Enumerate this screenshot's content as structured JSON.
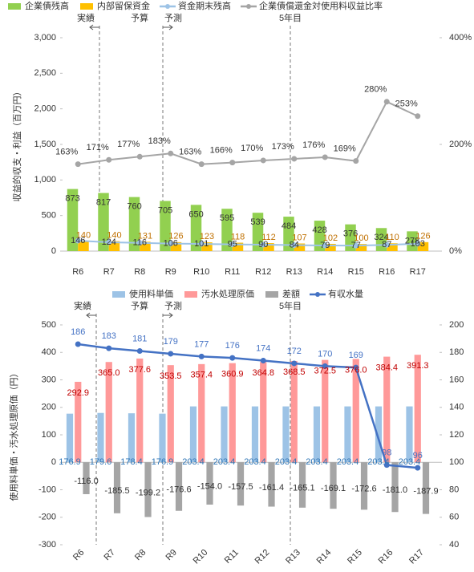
{
  "chart_data": [
    {
      "type": "bar",
      "ylabel": "収益的収支・利益（百万円）",
      "annotations": [
        "実績",
        "予算",
        "予測",
        "5年目"
      ],
      "categories": [
        "R6",
        "R7",
        "R8",
        "R9",
        "R10",
        "R11",
        "R12",
        "R13",
        "R14",
        "R15",
        "R16",
        "R17"
      ],
      "series": [
        {
          "name": "企業債残高",
          "type": "bar",
          "color": "#92d050",
          "values": [
            873,
            817,
            760,
            705,
            650,
            595,
            539,
            484,
            428,
            376,
            324,
            278
          ]
        },
        {
          "name": "内部留保資金",
          "type": "bar",
          "color": "#ffc000",
          "values": [
            140,
            140,
            131,
            126,
            123,
            118,
            112,
            107,
            102,
            100,
            110,
            126
          ]
        },
        {
          "name": "資金期末残高",
          "type": "line",
          "color": "#9dc3e6",
          "values": [
            146,
            124,
            116,
            106,
            101,
            95,
            90,
            84,
            79,
            77,
            87,
            103
          ]
        },
        {
          "name": "企業債償還金対使用料収益比率",
          "type": "line",
          "axis": "y2",
          "color": "#a5a5a5",
          "values": [
            163,
            171,
            177,
            183,
            163,
            166,
            170,
            173,
            176,
            169,
            280,
            253
          ],
          "value_labels": [
            "163%",
            "171%",
            "177%",
            "183%",
            "163%",
            "166%",
            "170%",
            "173%",
            "176%",
            "169%",
            "280%",
            "253%"
          ]
        }
      ],
      "ylim": [
        0,
        3000
      ],
      "yticks": [
        0,
        500,
        {
          "value": 1000,
          "label": "1,000"
        },
        {
          "value": 1500,
          "label": "1,500"
        },
        {
          "value": 2000,
          "label": "2,000"
        },
        {
          "value": 2500,
          "label": "2,500"
        },
        {
          "value": 3000,
          "label": "3,000"
        }
      ],
      "y2lim": [
        0,
        400
      ],
      "y2ticks": [
        {
          "value": 0,
          "label": "0%"
        },
        {
          "value": 200,
          "label": "200%"
        },
        {
          "value": 400,
          "label": "400%"
        }
      ],
      "grid": false,
      "legend": "top"
    },
    {
      "type": "bar",
      "ylabel": "使用料単価・汚水処理原価（円）",
      "annotations": [
        "実績",
        "予算",
        "予測",
        "5年目"
      ],
      "categories": [
        "R6",
        "R7",
        "R8",
        "R9",
        "R10",
        "R11",
        "R12",
        "R13",
        "R14",
        "R15",
        "R16",
        "R17"
      ],
      "series": [
        {
          "name": "使用料単価",
          "type": "bar",
          "color": "#9dc3e6",
          "values": [
            176.9,
            179.6,
            178.4,
            176.9,
            203.4,
            203.4,
            203.4,
            203.4,
            203.4,
            203.4,
            203.4,
            203.4
          ]
        },
        {
          "name": "汚水処理原価",
          "type": "bar",
          "color": "#ff9999",
          "values": [
            292.9,
            365,
            377.6,
            353.5,
            357.4,
            360.9,
            364.8,
            368.5,
            372.5,
            376,
            384.4,
            391.3
          ],
          "value_labels": [
            "292.9",
            "365.0",
            "377.6",
            "353.5",
            "357.4",
            "360.9",
            "364.8",
            "368.5",
            "372.5",
            "376.0",
            "384.4",
            "391.3"
          ]
        },
        {
          "name": "差額",
          "type": "bar",
          "color": "#a5a5a5",
          "values": [
            -116,
            -185.5,
            -199.2,
            -176.6,
            -154,
            -157.5,
            -161.4,
            -165.1,
            -169.1,
            -172.6,
            -181,
            -187.9
          ],
          "value_labels": [
            "-116.0",
            "-185.5",
            "-199.2",
            "-176.6",
            "-154.0",
            "-157.5",
            "-161.4",
            "-165.1",
            "-169.1",
            "-172.6",
            "-181.0",
            "-187.9"
          ]
        },
        {
          "name": "有収水量",
          "type": "line",
          "axis": "y2",
          "color": "#4472c4",
          "values": [
            186,
            183,
            181,
            179,
            177,
            176,
            174,
            172,
            170,
            169,
            98,
            96
          ]
        }
      ],
      "ylim": [
        -300,
        500
      ],
      "yticks": [
        -300,
        -200,
        -100,
        0,
        100,
        200,
        300,
        400,
        500
      ],
      "y2lim": [
        40,
        200
      ],
      "y2ticks": [
        40,
        60,
        80,
        100,
        120,
        140,
        160,
        180,
        200
      ],
      "grid": false,
      "legend": "top"
    }
  ]
}
